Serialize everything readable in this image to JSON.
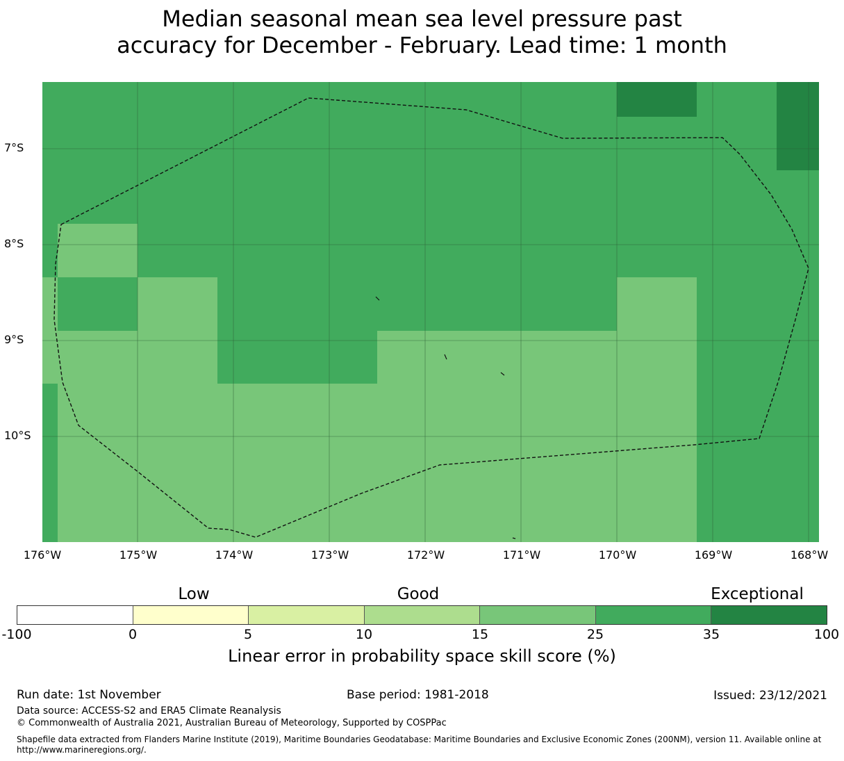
{
  "title": {
    "line1": "Median seasonal mean sea level pressure past",
    "line2": "accuracy for December - February. Lead time: 1 month"
  },
  "map": {
    "y_ticks": [
      "7°S",
      "8°S",
      "9°S",
      "10°S"
    ],
    "x_ticks": [
      "176°W",
      "175°W",
      "174°W",
      "173°W",
      "172°W",
      "171°W",
      "170°W",
      "169°W",
      "168°W"
    ],
    "colors": {
      "medium": "#41ab5d",
      "light": "#78c679",
      "dark": "#238443"
    }
  },
  "legend": {
    "categories": [
      "Low",
      "Good",
      "Exceptional"
    ],
    "colors": [
      "#ffffff",
      "#ffffcc",
      "#d9f0a3",
      "#addd8e",
      "#78c679",
      "#41ab5d",
      "#238443"
    ],
    "ticks": [
      "-100",
      "0",
      "5",
      "10",
      "15",
      "25",
      "35",
      "100"
    ],
    "label": "Linear error in probability space skill score (%)"
  },
  "footer": {
    "run_date": "Run date: 1st November",
    "base_period": "Base period: 1981-2018",
    "issued": "Issued: 23/12/2021",
    "data_source": "Data source: ACCESS-S2 and ERA5 Climate Reanalysis",
    "copyright": "© Commonwealth of Australia 2021, Australian Bureau of Meteorology, Supported by COSPPac",
    "shapefile": "Shapefile data extracted from Flanders Marine Institute (2019), Maritime Boundaries Geodatabase: Maritime Boundaries and Exclusive Economic Zones (200NM), version 11. Available online at http://www.marineregions.org/."
  }
}
